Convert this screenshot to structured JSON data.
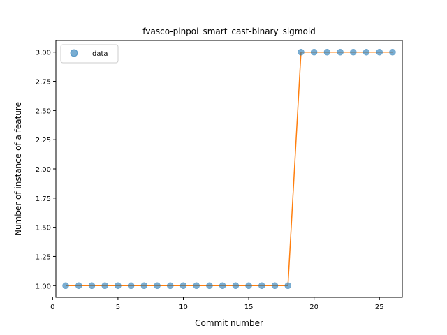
{
  "chart_data": {
    "type": "line",
    "title": "fvasco-pinpoi_smart_cast-binary_sigmoid",
    "xlabel": "Commit number",
    "ylabel": "Number of instance of a feature",
    "xlim": [
      0.25,
      26.75
    ],
    "ylim": [
      0.9,
      3.1
    ],
    "xticks": [
      0,
      5,
      10,
      15,
      20,
      25
    ],
    "yticks": [
      1.0,
      1.25,
      1.5,
      1.75,
      2.0,
      2.25,
      2.5,
      2.75,
      3.0
    ],
    "grid": false,
    "legend_position": "upper left",
    "series": [
      {
        "name": "data",
        "kind": "scatter",
        "color": "#1f77b4",
        "x": [
          1,
          2,
          3,
          4,
          5,
          6,
          7,
          8,
          9,
          10,
          11,
          12,
          13,
          14,
          15,
          16,
          17,
          18,
          19,
          20,
          21,
          22,
          23,
          24,
          25,
          26
        ],
        "y": [
          1,
          1,
          1,
          1,
          1,
          1,
          1,
          1,
          1,
          1,
          1,
          1,
          1,
          1,
          1,
          1,
          1,
          1,
          3,
          3,
          3,
          3,
          3,
          3,
          3,
          3
        ]
      },
      {
        "kind": "line",
        "color": "#ff7f0e",
        "x": [
          1,
          2,
          3,
          4,
          5,
          6,
          7,
          8,
          9,
          10,
          11,
          12,
          13,
          14,
          15,
          16,
          17,
          18,
          19,
          20,
          21,
          22,
          23,
          24,
          25,
          26
        ],
        "y": [
          1,
          1,
          1,
          1,
          1,
          1,
          1,
          1,
          1,
          1,
          1,
          1,
          1,
          1,
          1,
          1,
          1,
          1,
          3,
          3,
          3,
          3,
          3,
          3,
          3,
          3
        ]
      }
    ]
  }
}
